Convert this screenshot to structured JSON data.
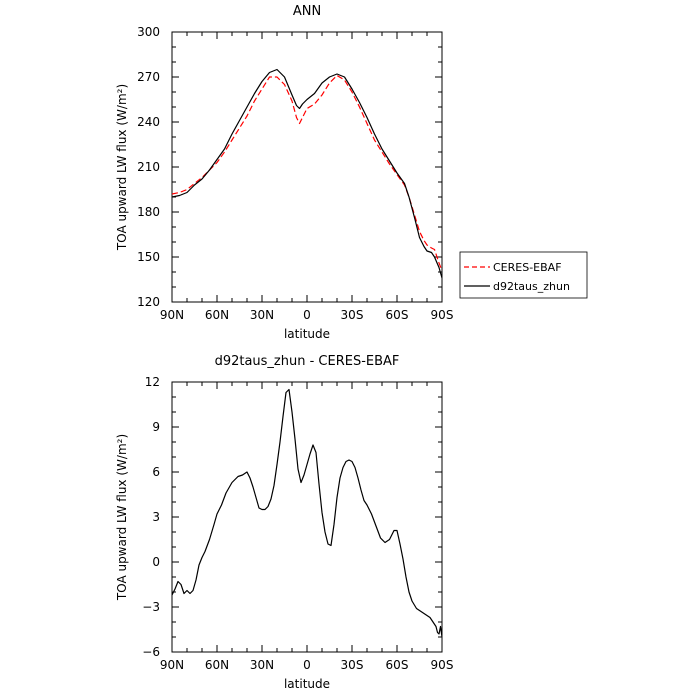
{
  "chart_data": [
    {
      "type": "line",
      "title": "ANN",
      "xlabel": "latitude",
      "ylabel": "TOA upward LW flux (W/m²)",
      "xlim": [
        90,
        -90
      ],
      "ylim": [
        120,
        300
      ],
      "xticks": [
        90,
        60,
        30,
        0,
        -30,
        -60,
        -90
      ],
      "xtick_labels": [
        "90N",
        "60N",
        "30N",
        "0",
        "30S",
        "60S",
        "90S"
      ],
      "yticks": [
        120,
        150,
        180,
        210,
        240,
        270,
        300
      ],
      "ytick_labels": [
        "120",
        "150",
        "180",
        "210",
        "240",
        "270",
        "300"
      ],
      "grid": false,
      "legend_placement": "outside-right",
      "series": [
        {
          "name": "CERES-EBAF",
          "color": "#ff0000",
          "dash": "dashed",
          "x": [
            90,
            85,
            80,
            75,
            70,
            65,
            60,
            55,
            50,
            45,
            40,
            35,
            30,
            25,
            20,
            15,
            10,
            7,
            5,
            3,
            0,
            -5,
            -10,
            -15,
            -20,
            -25,
            -30,
            -35,
            -40,
            -45,
            -50,
            -55,
            -60,
            -65,
            -68,
            -72,
            -75,
            -78,
            -80,
            -83,
            -85,
            -88,
            -90
          ],
          "y": [
            192,
            193,
            195,
            199,
            203,
            208,
            213,
            220,
            228,
            236,
            244,
            254,
            262,
            270,
            270,
            265,
            254,
            243,
            239,
            243,
            249,
            252,
            258,
            266,
            271,
            268,
            260,
            250,
            239,
            228,
            220,
            212,
            205,
            198,
            190,
            177,
            167,
            161,
            158,
            156,
            155,
            146,
            141
          ]
        },
        {
          "name": "d92taus_zhun",
          "color": "#000000",
          "dash": "solid",
          "x": [
            90,
            85,
            80,
            75,
            70,
            65,
            60,
            55,
            50,
            45,
            40,
            35,
            30,
            25,
            20,
            15,
            10,
            7,
            5,
            3,
            0,
            -5,
            -10,
            -15,
            -20,
            -25,
            -30,
            -35,
            -40,
            -45,
            -50,
            -55,
            -60,
            -65,
            -68,
            -72,
            -75,
            -78,
            -80,
            -83,
            -85,
            -88,
            -90
          ],
          "y": [
            190,
            191,
            193,
            198,
            202,
            208,
            215,
            222,
            232,
            241,
            250,
            259,
            267,
            273,
            275,
            270,
            258,
            251,
            249,
            252,
            255,
            259,
            266,
            270,
            272,
            270,
            262,
            253,
            243,
            232,
            222,
            214,
            206,
            199,
            190,
            175,
            163,
            157,
            154,
            153,
            150,
            143,
            136
          ]
        }
      ]
    },
    {
      "type": "line",
      "title": "d92taus_zhun - CERES-EBAF",
      "xlabel": "latitude",
      "ylabel": "TOA upward LW flux (W/m²)",
      "xlim": [
        90,
        -90
      ],
      "ylim": [
        -6,
        12
      ],
      "xticks": [
        90,
        60,
        30,
        0,
        -30,
        -60,
        -90
      ],
      "xtick_labels": [
        "90N",
        "60N",
        "30N",
        "0",
        "30S",
        "60S",
        "90S"
      ],
      "yticks": [
        -6,
        -3,
        0,
        3,
        6,
        9,
        12
      ],
      "ytick_labels": [
        "−6",
        "−3",
        "0",
        "3",
        "6",
        "9",
        "12"
      ],
      "grid": false,
      "series": [
        {
          "color": "#000000",
          "dash": "solid",
          "x": [
            90,
            88,
            86,
            84,
            82,
            80,
            78,
            76,
            74,
            72,
            70,
            68,
            65,
            62,
            60,
            57,
            54,
            50,
            46,
            43,
            40,
            38,
            36,
            34,
            32,
            30,
            28,
            26,
            24,
            22,
            20,
            18,
            16,
            14,
            12,
            10,
            8,
            6,
            4,
            2,
            0,
            -2,
            -4,
            -6,
            -8,
            -10,
            -12,
            -14,
            -16,
            -18,
            -20,
            -22,
            -24,
            -26,
            -28,
            -30,
            -32,
            -34,
            -36,
            -38,
            -40,
            -43,
            -46,
            -49,
            -52,
            -55,
            -58,
            -60,
            -62,
            -64,
            -66,
            -68,
            -70,
            -73,
            -76,
            -79,
            -82,
            -84,
            -86,
            -87,
            -88,
            -89,
            -90
          ],
          "y": [
            -2.2,
            -1.8,
            -1.3,
            -1.5,
            -2.1,
            -1.9,
            -2.1,
            -1.9,
            -1.2,
            -0.2,
            0.3,
            0.7,
            1.5,
            2.5,
            3.2,
            3.8,
            4.6,
            5.3,
            5.7,
            5.8,
            6.0,
            5.6,
            5.0,
            4.3,
            3.6,
            3.5,
            3.5,
            3.7,
            4.2,
            5.1,
            6.5,
            8.0,
            9.7,
            11.3,
            11.5,
            10.0,
            8.2,
            6.2,
            5.3,
            5.8,
            6.5,
            7.2,
            7.8,
            7.3,
            5.2,
            3.3,
            2.0,
            1.2,
            1.1,
            2.5,
            4.3,
            5.6,
            6.3,
            6.7,
            6.8,
            6.7,
            6.3,
            5.6,
            4.8,
            4.1,
            3.8,
            3.2,
            2.4,
            1.6,
            1.3,
            1.5,
            2.1,
            2.1,
            1.2,
            0.2,
            -1.0,
            -2.0,
            -2.6,
            -3.1,
            -3.3,
            -3.5,
            -3.7,
            -4.0,
            -4.3,
            -4.7,
            -4.8,
            -4.3,
            -5.0
          ]
        }
      ]
    }
  ]
}
